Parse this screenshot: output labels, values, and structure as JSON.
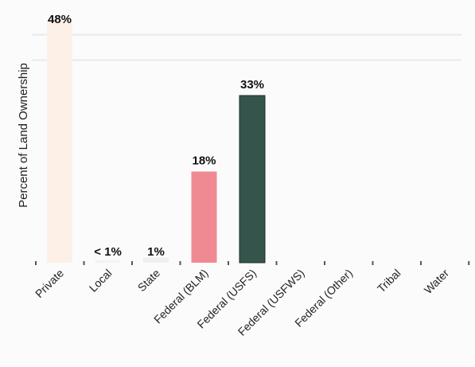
{
  "chart_data": {
    "type": "bar",
    "title": "",
    "xlabel": "",
    "ylabel": "Percent of Land Ownership",
    "ylim": [
      0,
      50
    ],
    "grid": true,
    "categories": [
      "Private",
      "Local",
      "State",
      "Federal (BLM)",
      "Federal (USFS)",
      "Federal (USFWS)",
      "Federal (Other)",
      "Tribal",
      "Water"
    ],
    "values": [
      48,
      0.5,
      1,
      18,
      33,
      0,
      0,
      0,
      0
    ],
    "data_labels": [
      "48%",
      "< 1%",
      "1%",
      "18%",
      "33%",
      "",
      "",
      "",
      ""
    ],
    "colors": [
      "#fdf0e6",
      "#f3f3f3",
      "#efefef",
      "#f08a92",
      "#35554c",
      "#ffffff",
      "#ffffff",
      "#ffffff",
      "#ffffff"
    ],
    "grid_color": "#e9e9e9",
    "tick_color": "#555555"
  }
}
